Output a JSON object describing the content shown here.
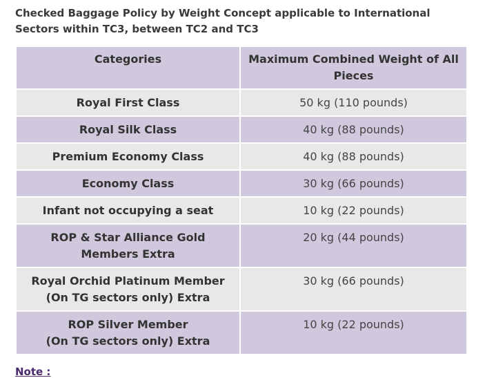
{
  "title": "Checked Baggage Policy by Weight Concept applicable to International Sectors within TC3, between TC2 and TC3",
  "table": {
    "header": [
      "Categories",
      "Maximum Combined Weight of All Pieces"
    ],
    "rows": [
      [
        "Royal First Class",
        "50 kg (110 pounds)"
      ],
      [
        "Royal Silk Class",
        "40 kg (88 pounds)"
      ],
      [
        "Premium Economy Class",
        "40 kg (88 pounds)"
      ],
      [
        "Economy Class",
        "30 kg (66 pounds)"
      ],
      [
        "Infant not occupying a seat",
        "10 kg (22 pounds)"
      ],
      [
        [
          "ROP & Star Alliance Gold",
          "Members Extra"
        ],
        "20 kg (44 pounds)"
      ],
      [
        [
          "Royal Orchid Platinum Member",
          "(On TG sectors only) Extra"
        ],
        "30 kg (66 pounds)"
      ],
      [
        [
          "ROP Silver Member",
          "(On TG sectors only) Extra"
        ],
        "10 kg (22 pounds)"
      ]
    ]
  },
  "note": "Note :"
}
